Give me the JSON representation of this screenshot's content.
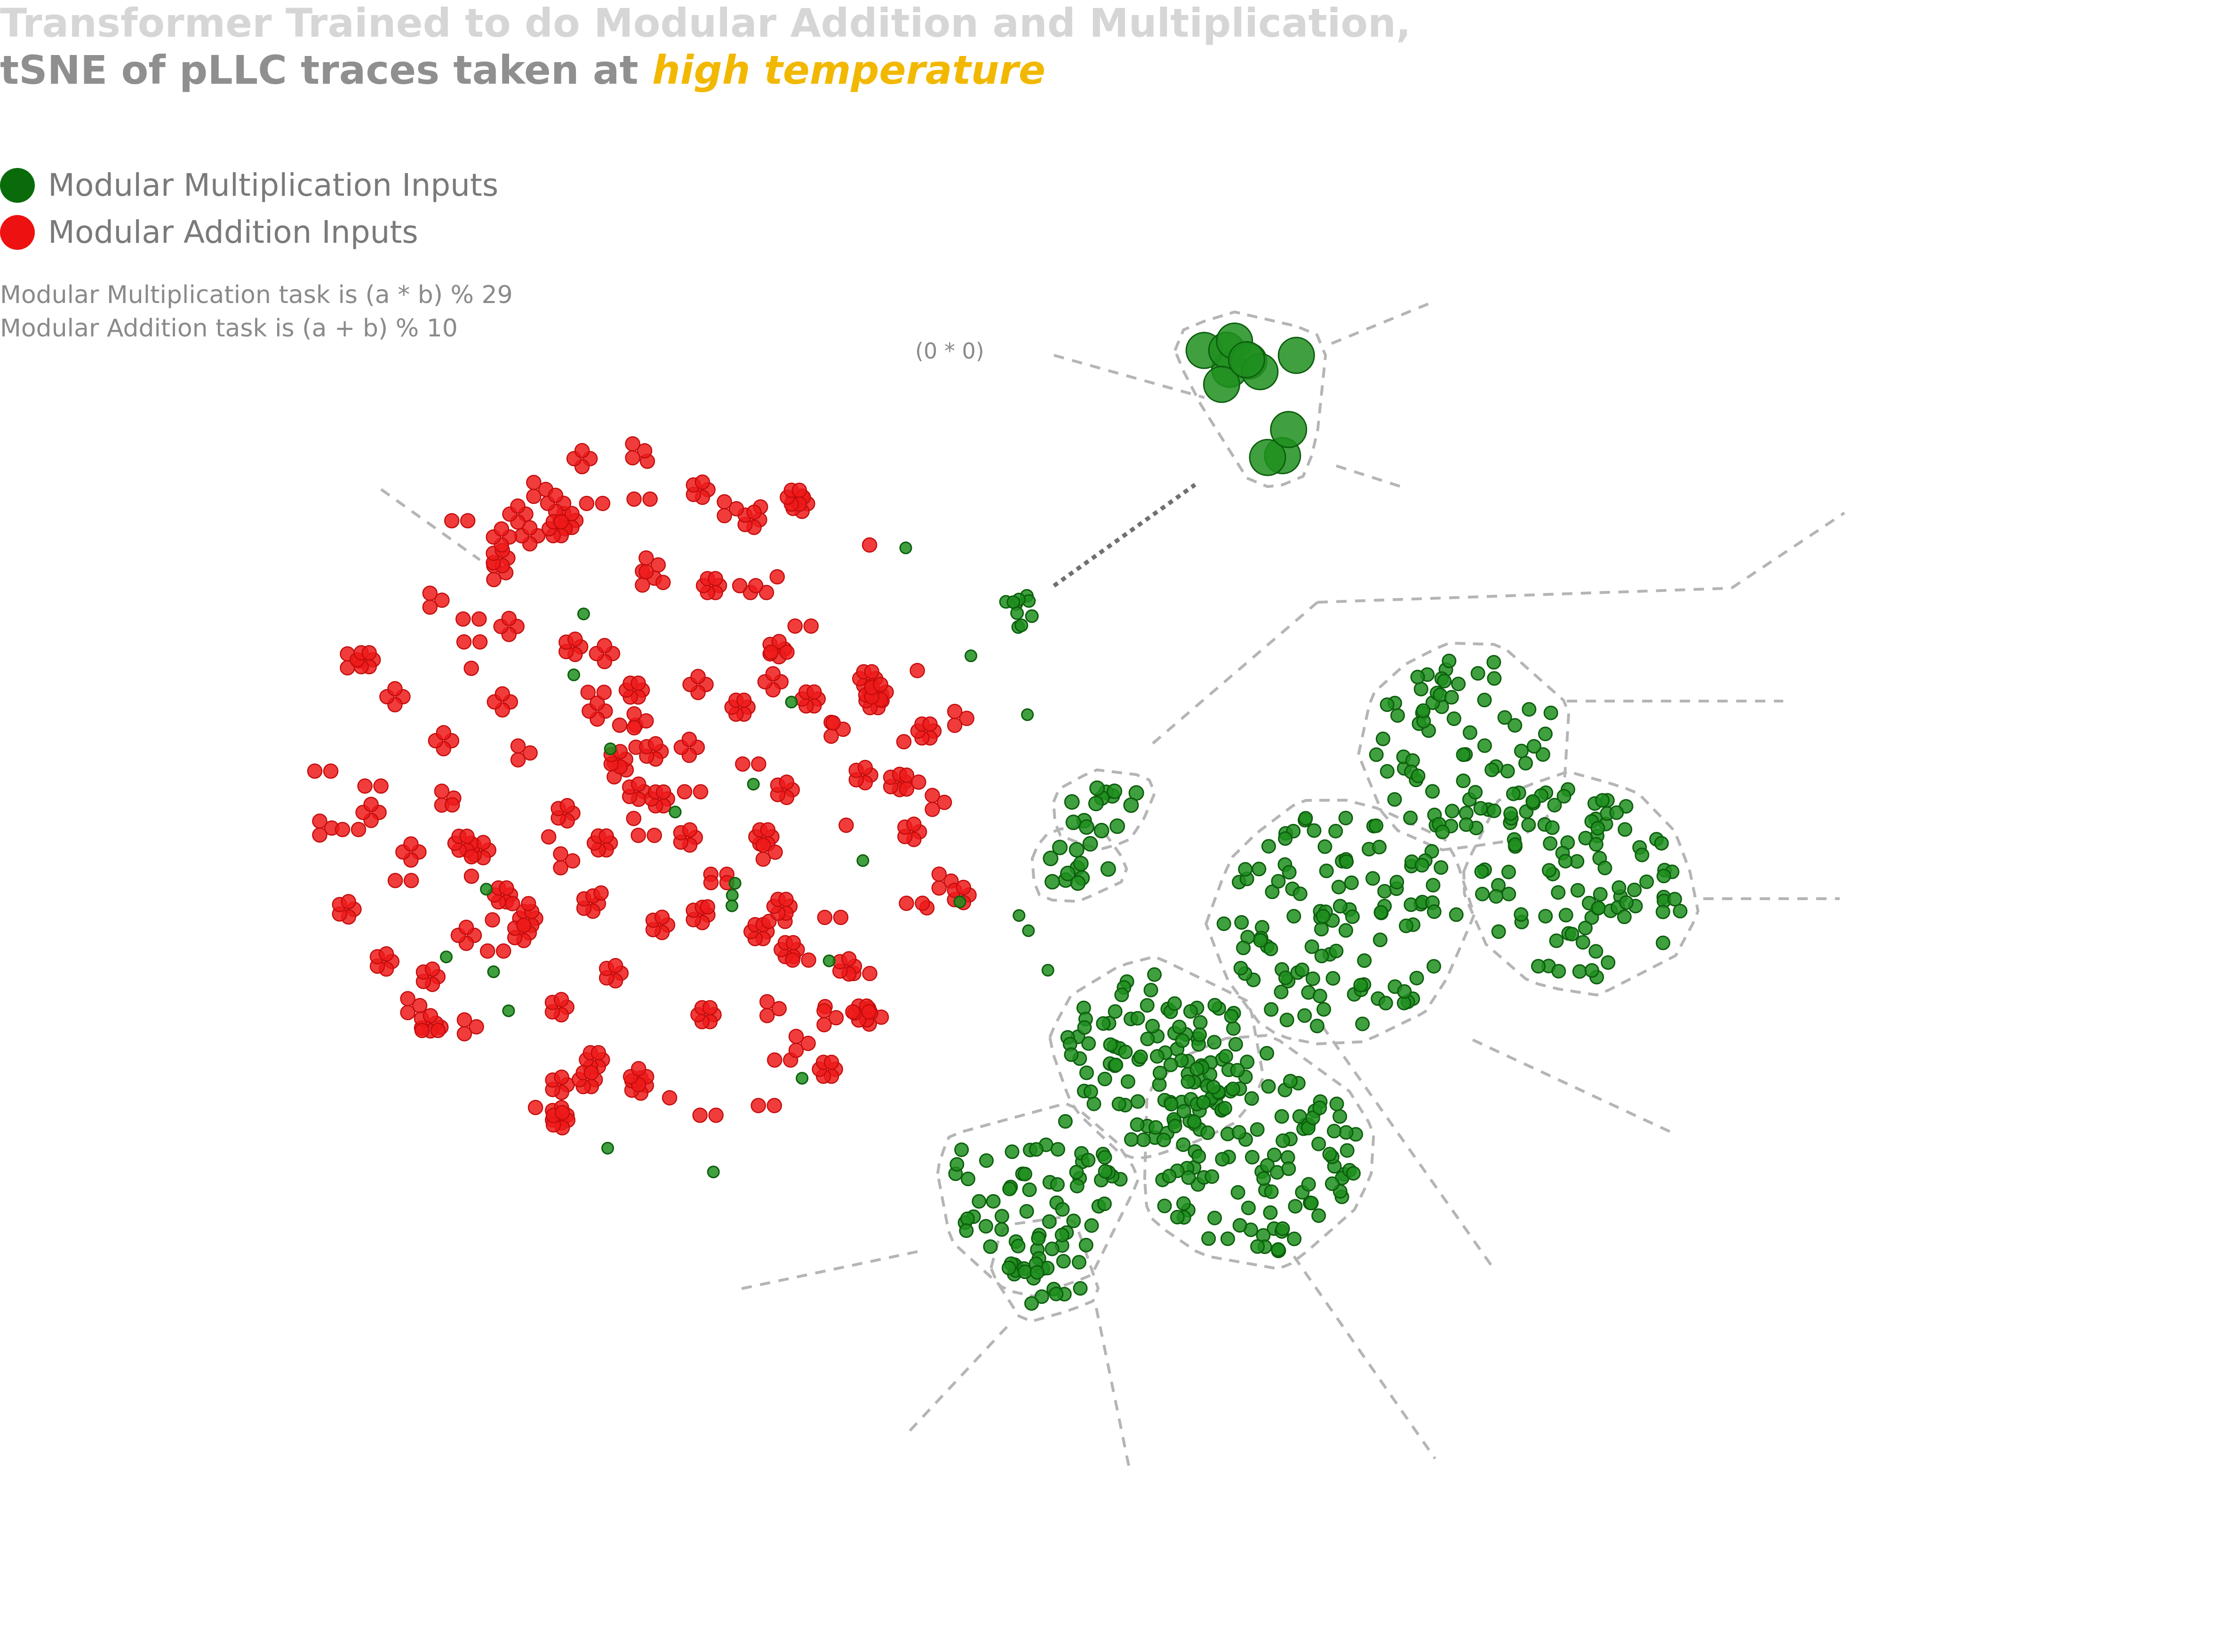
{
  "title": {
    "line1": "Transformer Trained to do Modular Addition and Multiplication,",
    "line2_prefix": "tSNE of pLLC traces taken at ",
    "line2_highlight": "high temperature"
  },
  "legend": [
    {
      "label": "Modular Multiplication Inputs",
      "color": "#0a6b0a"
    },
    {
      "label": "Modular Addition Inputs",
      "color": "#ee1111"
    }
  ],
  "notes": [
    "Modular Multiplication task is (a * b) % 29",
    "Modular Addition task is (a + b) % 10"
  ],
  "colors": {
    "multiplication": "#1f8f1f",
    "addition": "#ee1a1a",
    "highlight": "#f2b800",
    "hull_border": "#b5b5b5"
  },
  "chart_data": {
    "type": "scatter",
    "axes_visible": false,
    "grid": false,
    "legend_position": "top-left",
    "annotations": [
      {
        "text": "(0 * 0)",
        "target_cluster": "mult-zero"
      }
    ],
    "series": [
      {
        "name": "Modular Multiplication Inputs",
        "description": "Clusters of green points",
        "clusters": [
          {
            "id": "mult-zero",
            "center": [
              2660,
              850
            ],
            "n": 12,
            "radius": 150,
            "size": 38,
            "hull": true
          },
          {
            "id": "mult-small-a",
            "center": [
              2350,
              1720
            ],
            "n": 14,
            "radius": 80,
            "size": 15,
            "hull": true
          },
          {
            "id": "mult-small-b",
            "center": [
              2300,
              1840
            ],
            "n": 12,
            "radius": 75,
            "size": 15,
            "hull": true
          },
          {
            "id": "mult-top-right",
            "center": [
              3120,
              1590
            ],
            "n": 75,
            "radius": 200,
            "size": 14,
            "hull": true
          },
          {
            "id": "mult-right",
            "center": [
              3360,
              1880
            ],
            "n": 90,
            "radius": 220,
            "size": 14,
            "hull": true
          },
          {
            "id": "mult-center",
            "center": [
              2850,
              1960
            ],
            "n": 110,
            "radius": 250,
            "size": 14,
            "hull": true
          },
          {
            "id": "mult-lower-left",
            "center": [
              2460,
              2250
            ],
            "n": 95,
            "radius": 200,
            "size": 14,
            "hull": true
          },
          {
            "id": "mult-lower-center",
            "center": [
              2660,
              2450
            ],
            "n": 120,
            "radius": 230,
            "size": 14,
            "hull": true
          },
          {
            "id": "mult-bottom-left",
            "center": [
              2200,
              2540
            ],
            "n": 60,
            "radius": 190,
            "size": 14,
            "hull": true
          },
          {
            "id": "mult-bottom-small",
            "center": [
              2220,
              2700
            ],
            "n": 22,
            "radius": 90,
            "size": 14,
            "hull": true
          },
          {
            "id": "mult-near-red",
            "center": [
              2150,
              1300
            ],
            "n": 10,
            "radius": 50,
            "size": 13,
            "hull": false
          },
          {
            "id": "mult-scatter",
            "center": [
              1500,
              1800
            ],
            "n": 25,
            "radius": 800,
            "size": 12,
            "hull": false
          }
        ]
      },
      {
        "name": "Modular Addition Inputs",
        "description": "About 160 small red clusters of 1-6 points",
        "region": {
          "center": [
            1380,
            1680
          ],
          "rx": 700,
          "ry": 740
        },
        "n_clusters": 160
      }
    ],
    "leader_lines": [
      {
        "from": [
          2240,
          755
        ],
        "to": [
          2560,
          845
        ],
        "dark": false
      },
      {
        "from": [
          2830,
          730
        ],
        "to": [
          3050,
          640
        ],
        "dark": false
      },
      {
        "from": [
          2840,
          990
        ],
        "to": [
          2980,
          1035
        ],
        "dark": false
      },
      {
        "from": [
          2240,
          1245
        ],
        "to": [
          2540,
          1030
        ],
        "dark": true
      },
      {
        "from": [
          810,
          1040
        ],
        "to": [
          1020,
          1190
        ],
        "dark": false
      },
      {
        "from": [
          2450,
          1580
        ],
        "to": [
          2800,
          1280
        ],
        "dark": false
      },
      {
        "from": [
          2800,
          1280
        ],
        "to": [
          3680,
          1250
        ],
        "dark": false
      },
      {
        "from": [
          3680,
          1250
        ],
        "to": [
          3920,
          1090
        ],
        "dark": false
      },
      {
        "from": [
          3330,
          1490
        ],
        "to": [
          3790,
          1490
        ],
        "dark": false
      },
      {
        "from": [
          3620,
          1910
        ],
        "to": [
          3910,
          1910
        ],
        "dark": false
      },
      {
        "from": [
          3130,
          2210
        ],
        "to": [
          3560,
          2410
        ],
        "dark": false
      },
      {
        "from": [
          2810,
          2180
        ],
        "to": [
          3170,
          2690
        ],
        "dark": false
      },
      {
        "from": [
          2750,
          2670
        ],
        "to": [
          3050,
          3100
        ],
        "dark": false
      },
      {
        "from": [
          1950,
          2660
        ],
        "to": [
          1570,
          2740
        ],
        "dark": false
      },
      {
        "from": [
          2140,
          2820
        ],
        "to": [
          1925,
          3050
        ],
        "dark": false
      },
      {
        "from": [
          2330,
          2780
        ],
        "to": [
          2400,
          3120
        ],
        "dark": false
      }
    ]
  }
}
